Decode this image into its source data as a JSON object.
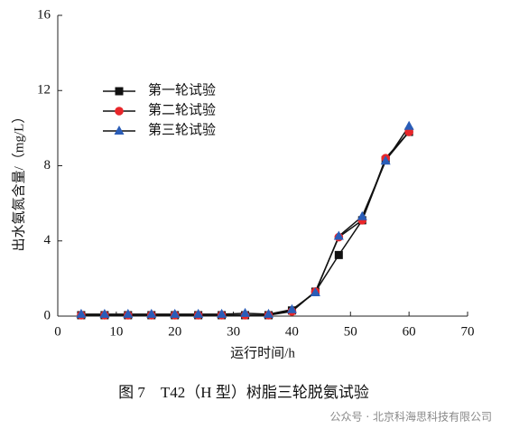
{
  "chart_data": {
    "type": "line",
    "title": "图 7　T42（H 型）树脂三轮脱氨试验",
    "x_label": "运行时间/h",
    "y_label": "出水氨氮含量/（mg/L）",
    "watermark": "公众号 · 北京科海思科技有限公司",
    "x": [
      4,
      8,
      12,
      16,
      20,
      24,
      28,
      32,
      36,
      40,
      44,
      48,
      52,
      56,
      60
    ],
    "series": [
      {
        "name": "第一轮试验",
        "color": "#111111",
        "marker": "square",
        "values": [
          0.05,
          0.05,
          0.05,
          0.05,
          0.05,
          0.05,
          0.05,
          0.05,
          0.05,
          0.3,
          1.3,
          3.25,
          5.1,
          8.3,
          9.8
        ]
      },
      {
        "name": "第二轮试验",
        "color": "#e8262a",
        "marker": "circle",
        "values": [
          0.05,
          0.05,
          0.05,
          0.05,
          0.05,
          0.05,
          0.05,
          0.05,
          0.05,
          0.25,
          1.3,
          4.2,
          5.1,
          8.4,
          9.8
        ]
      },
      {
        "name": "第三轮试验",
        "color": "#2a5db8",
        "marker": "triangle",
        "values": [
          0.1,
          0.1,
          0.1,
          0.1,
          0.1,
          0.1,
          0.1,
          0.15,
          0.1,
          0.35,
          1.25,
          4.25,
          5.3,
          8.25,
          10.1
        ]
      }
    ],
    "line_color": "#111111",
    "xlim": [
      0,
      70
    ],
    "xticks": [
      0,
      10,
      20,
      30,
      40,
      50,
      60,
      70
    ],
    "ylim": [
      0,
      16
    ],
    "yticks": [
      0,
      4,
      8,
      12,
      16
    ],
    "legend": "upper left"
  }
}
